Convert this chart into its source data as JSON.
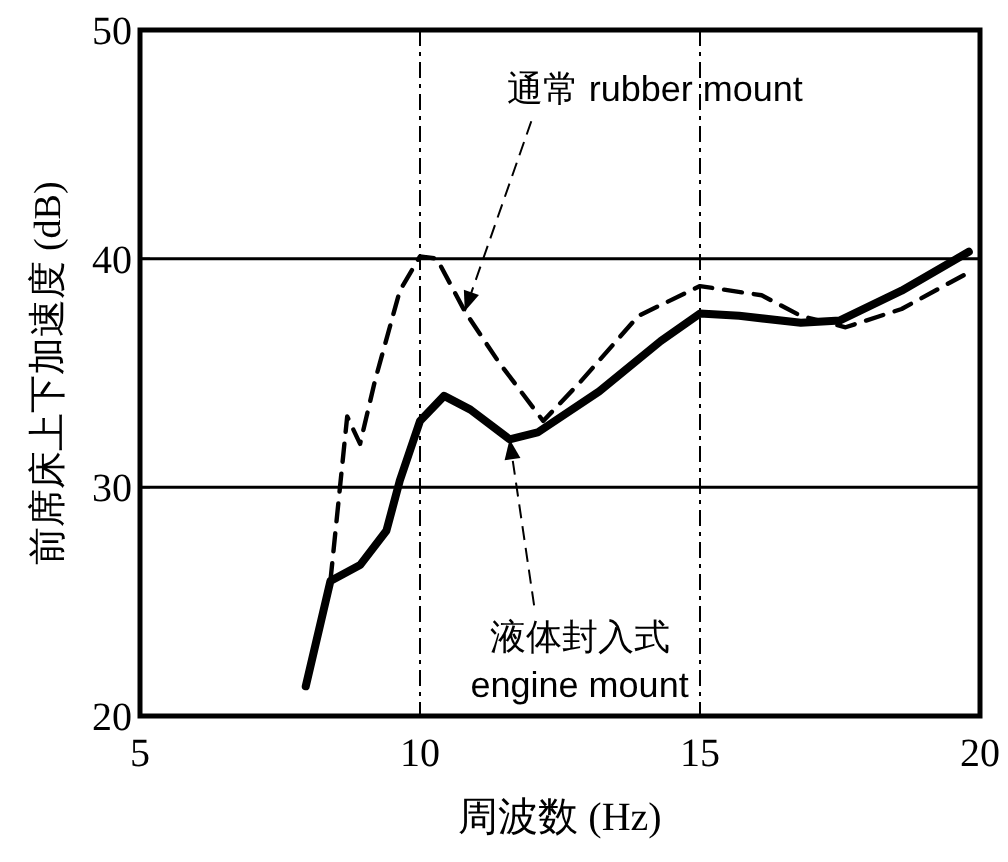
{
  "chart_data": {
    "type": "line",
    "xlabel": "周波数 (Hz)",
    "ylabel": "前席床上下加速度 (dB)",
    "xlim": [
      5,
      20
    ],
    "xticks": [
      5,
      10,
      15,
      20
    ],
    "ylim": [
      20,
      50
    ],
    "yticks": [
      20,
      30,
      40,
      50
    ],
    "grid": true,
    "series": [
      {
        "color": "#000000",
        "line_style": "dashed",
        "x": [
          8.4,
          8.7,
          8.93,
          9.2,
          9.64,
          10.0,
          10.3,
          10.8,
          11.4,
          12.2,
          12.86,
          13.9,
          15.0,
          16.1,
          16.8,
          17.6,
          18.6,
          19.8
        ],
        "values": [
          25.9,
          33.1,
          31.9,
          34.7,
          38.6,
          40.1,
          40.0,
          37.7,
          35.5,
          32.9,
          34.6,
          37.5,
          38.8,
          38.4,
          37.5,
          37.0,
          37.8,
          39.4
        ]
      },
      {
        "color": "#000000",
        "line_style": "solid",
        "x": [
          7.96,
          8.4,
          8.93,
          9.4,
          9.64,
          10.0,
          10.43,
          10.9,
          11.6,
          12.1,
          13.2,
          14.3,
          15.0,
          15.7,
          16.8,
          17.5,
          18.6,
          19.8
        ],
        "values": [
          21.3,
          25.9,
          26.6,
          28.1,
          30.3,
          32.9,
          34.0,
          33.4,
          32.1,
          32.4,
          34.2,
          36.4,
          37.6,
          37.5,
          37.2,
          37.3,
          38.6,
          40.3
        ]
      }
    ],
    "annotations": [
      {
        "text": "通常 rubber mount",
        "x": 10.8,
        "y": 37.7
      },
      {
        "text": "液体封入式\nengine mount",
        "x": 11.6,
        "y": 32.1
      }
    ]
  }
}
